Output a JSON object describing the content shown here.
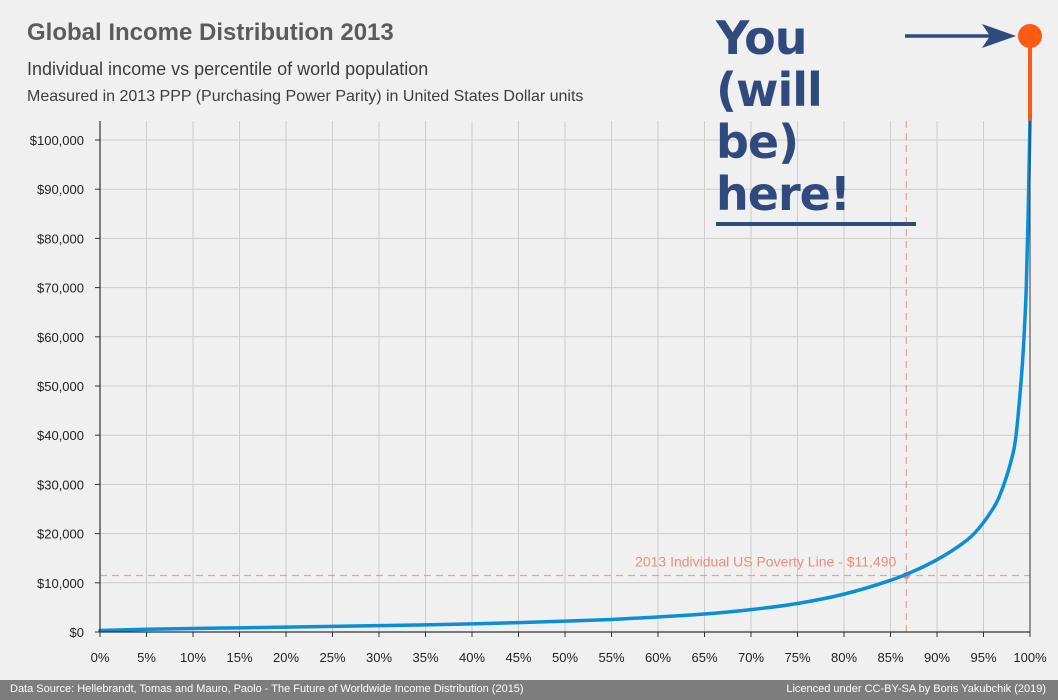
{
  "header": {
    "title": "Global Income Distribution 2013",
    "subtitle": "Individual income vs percentile of world population",
    "subtitle2": "Measured in 2013 PPP (Purchasing Power Parity) in United States Dollar units"
  },
  "callout": {
    "line1": "You (will",
    "line2": "be) here!"
  },
  "footer": {
    "source": "Data Source: Hellebrandt, Tomas and Mauro, Paolo - The Future of Worldwide Income Distribution (2015)",
    "license": "Licenced under CC-BY-SA by Boris Yakubchik (2019)"
  },
  "colors": {
    "line": "#0a8fd6",
    "poverty": "#f08c7a",
    "marker": "#ff5a14",
    "callout": "#314a7e",
    "grid": "#cccccc"
  },
  "chart_data": {
    "type": "line",
    "xlim": [
      0,
      100
    ],
    "ylim": [
      0,
      100000
    ],
    "x_ticks": [
      0,
      5,
      10,
      15,
      20,
      25,
      30,
      35,
      40,
      45,
      50,
      55,
      60,
      65,
      70,
      75,
      80,
      85,
      90,
      95,
      100
    ],
    "x_tick_labels": [
      "0%",
      "5%",
      "10%",
      "15%",
      "20%",
      "25%",
      "30%",
      "35%",
      "40%",
      "45%",
      "50%",
      "55%",
      "60%",
      "65%",
      "70%",
      "75%",
      "80%",
      "85%",
      "90%",
      "95%",
      "100%"
    ],
    "y_ticks": [
      0,
      10000,
      20000,
      30000,
      40000,
      50000,
      60000,
      70000,
      80000,
      90000,
      100000
    ],
    "y_tick_labels": [
      "$0",
      "$10,000",
      "$20,000",
      "$30,000",
      "$40,000",
      "$50,000",
      "$60,000",
      "$70,000",
      "$80,000",
      "$90,000",
      "$100,000"
    ],
    "grid": true,
    "series": [
      {
        "x": [
          0,
          5,
          10,
          15,
          20,
          25,
          30,
          35,
          40,
          45,
          50,
          55,
          60,
          65,
          70,
          75,
          80,
          85,
          88,
          90,
          92,
          94,
          96,
          97,
          98,
          98.5,
          99,
          99.3,
          99.6,
          99.8,
          100
        ],
        "y": [
          300,
          550,
          700,
          850,
          1000,
          1150,
          1300,
          1450,
          1650,
          1900,
          2200,
          2550,
          3050,
          3650,
          4550,
          5800,
          7700,
          10500,
          12800,
          14700,
          17000,
          20000,
          25000,
          29000,
          35000,
          40000,
          50000,
          58000,
          70000,
          85000,
          104000
        ]
      }
    ],
    "annotations": [
      {
        "label": "2013 Individual US Poverty Line - $11,490",
        "x": 86.7,
        "y": 11490
      }
    ],
    "marker": {
      "x": 100,
      "y": 104000
    }
  }
}
